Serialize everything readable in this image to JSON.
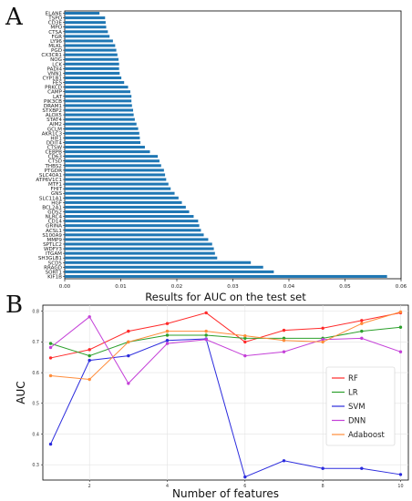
{
  "panels": {
    "a_label": "A",
    "b_label": "B"
  },
  "chart_data": [
    {
      "type": "bar",
      "orientation": "horizontal",
      "bar_color": "#1f77b4",
      "categories": [
        "ELANE",
        "TSPO",
        "CD3E",
        "MPO",
        "CTSA",
        "FGR",
        "LY96",
        "MLKL",
        "PGD",
        "CX3CR1",
        "NOG",
        "LCK",
        "PADI4",
        "VNN1",
        "CYP1B1",
        "FES",
        "PRKCD",
        "CAMP",
        "LAT",
        "PIK3CB",
        "DRAM1",
        "STXBP2",
        "ALOX5",
        "STAT4",
        "AIM2",
        "GCLM",
        "AKR1C3",
        "HIF1",
        "DDIT4",
        "CTSW",
        "CEBPB",
        "CD63",
        "CTSD",
        "THBS2",
        "PTGDR",
        "SLC40A1",
        "ATP6V1C1",
        "MTF1",
        "FHIT",
        "GNS",
        "SLC11A1",
        "HGF",
        "BCL2A1",
        "GDS2",
        "NLRC4",
        "CD14",
        "GRINA",
        "ACSL1",
        "S100A9",
        "MMP9",
        "SPTLC2",
        "WDFY3",
        "ITGAM",
        "SH3GLB1",
        "SCD5",
        "RRAGD",
        "SORT1",
        "KIF1B"
      ],
      "values": [
        0.0062,
        0.0072,
        0.0073,
        0.0074,
        0.0077,
        0.008,
        0.0086,
        0.009,
        0.0092,
        0.0094,
        0.0096,
        0.0097,
        0.0097,
        0.0098,
        0.0101,
        0.0106,
        0.0113,
        0.0117,
        0.0119,
        0.0119,
        0.012,
        0.0122,
        0.0123,
        0.0125,
        0.0128,
        0.0131,
        0.0133,
        0.0134,
        0.0135,
        0.0143,
        0.0152,
        0.0166,
        0.0169,
        0.0172,
        0.0177,
        0.0179,
        0.0181,
        0.0185,
        0.0189,
        0.0196,
        0.0203,
        0.0209,
        0.0216,
        0.0222,
        0.023,
        0.0238,
        0.024,
        0.0243,
        0.0248,
        0.0256,
        0.0263,
        0.0266,
        0.0268,
        0.0272,
        0.0332,
        0.0354,
        0.0373,
        0.0575
      ],
      "xlim": [
        0,
        0.06
      ],
      "xticks": [
        "0.00",
        "0.01",
        "0.02",
        "0.03",
        "0.04",
        "0.05",
        "0.06"
      ],
      "title": "",
      "xlabel": "",
      "ylabel": ""
    },
    {
      "type": "line",
      "title": "Results for AUC on the test set",
      "xlabel": "Number of features",
      "ylabel": "AUC",
      "xlim": [
        0.8,
        10.2
      ],
      "ylim": [
        0.25,
        0.82
      ],
      "xticks": [
        "2",
        "4",
        "6",
        "8",
        "10"
      ],
      "yticks": [
        "0.3",
        "0.4",
        "0.5",
        "0.6",
        "0.7",
        "0.8"
      ],
      "grid": true,
      "legend_position": "right",
      "x": [
        1,
        2,
        3,
        4,
        5,
        6,
        7,
        8,
        9,
        10
      ],
      "series": [
        {
          "name": "RF",
          "color": "#ff2a2a",
          "values": [
            0.648,
            0.675,
            0.735,
            0.76,
            0.795,
            0.7,
            0.738,
            0.745,
            0.77,
            0.795
          ]
        },
        {
          "name": "LR",
          "color": "#2ca02c",
          "values": [
            0.695,
            0.655,
            0.7,
            0.722,
            0.722,
            0.712,
            0.712,
            0.712,
            0.735,
            0.748
          ]
        },
        {
          "name": "SVM",
          "color": "#2b2bdd",
          "values": [
            0.367,
            0.64,
            0.655,
            0.705,
            0.71,
            0.26,
            0.313,
            0.288,
            0.288,
            0.268
          ]
        },
        {
          "name": "DNN",
          "color": "#c440d8",
          "values": [
            0.682,
            0.782,
            0.565,
            0.695,
            0.708,
            0.655,
            0.668,
            0.708,
            0.712,
            0.668
          ]
        },
        {
          "name": "Adaboost",
          "color": "#ff8c3a",
          "values": [
            0.59,
            0.578,
            0.7,
            0.735,
            0.735,
            0.72,
            0.705,
            0.7,
            0.76,
            0.798
          ]
        }
      ]
    }
  ]
}
